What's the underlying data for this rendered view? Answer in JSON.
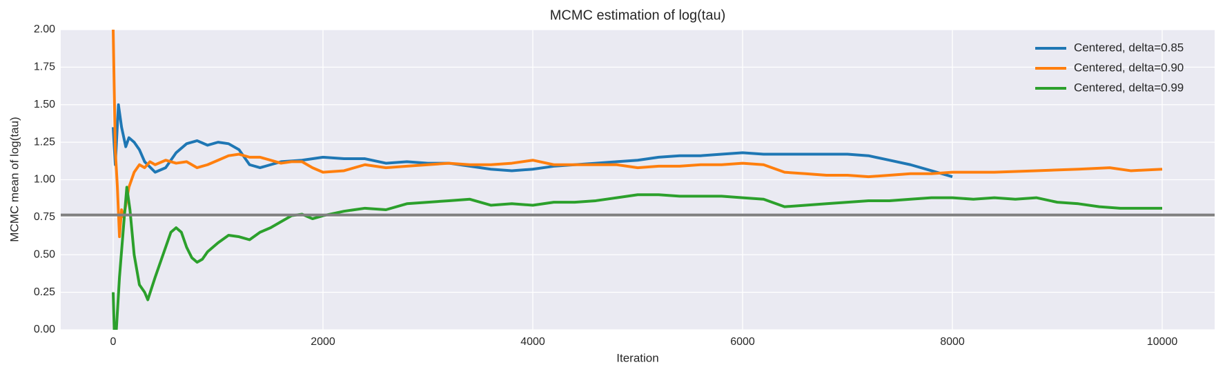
{
  "chart_data": {
    "type": "line",
    "title": "MCMC estimation of log(tau)",
    "x_label": "Iteration",
    "y_label": "MCMC mean of log(tau)",
    "xlim": [
      -500,
      10500
    ],
    "xticks": [
      0,
      2000,
      4000,
      6000,
      8000,
      10000
    ],
    "ylim": [
      0,
      2
    ],
    "yticks": [
      {
        "value": 0,
        "label": "0.00"
      },
      {
        "value": 0.25,
        "label": "0.25"
      },
      {
        "value": 0.5,
        "label": "0.50"
      },
      {
        "value": 0.75,
        "label": "0.75"
      },
      {
        "value": 1,
        "label": "1.00"
      },
      {
        "value": 1.25,
        "label": "1.25"
      },
      {
        "value": 1.5,
        "label": "1.50"
      },
      {
        "value": 1.75,
        "label": "1.75"
      },
      {
        "value": 2,
        "label": "2.00"
      }
    ],
    "grid": true,
    "legend": "upper right",
    "reference_line": {
      "y": 0.765,
      "color": "#808080"
    },
    "series": [
      {
        "name": "Centered, delta=0.85",
        "color": "#1f77b4",
        "x": [
          0,
          20,
          50,
          80,
          120,
          150,
          200,
          250,
          300,
          400,
          500,
          600,
          700,
          800,
          900,
          1000,
          1100,
          1200,
          1300,
          1400,
          1500,
          1600,
          1800,
          2000,
          2200,
          2400,
          2600,
          2800,
          3000,
          3200,
          3400,
          3600,
          3800,
          4000,
          4200,
          4400,
          4600,
          4800,
          5000,
          5200,
          5400,
          5600,
          5800,
          6000,
          6200,
          6400,
          6600,
          6800,
          7000,
          7200,
          7400,
          7600,
          7800,
          8000
        ],
        "values": [
          1.35,
          1.1,
          1.5,
          1.35,
          1.22,
          1.28,
          1.25,
          1.2,
          1.12,
          1.05,
          1.08,
          1.18,
          1.24,
          1.26,
          1.23,
          1.25,
          1.24,
          1.2,
          1.1,
          1.08,
          1.1,
          1.12,
          1.13,
          1.15,
          1.14,
          1.14,
          1.11,
          1.12,
          1.11,
          1.11,
          1.09,
          1.07,
          1.06,
          1.07,
          1.09,
          1.1,
          1.11,
          1.12,
          1.13,
          1.15,
          1.16,
          1.16,
          1.17,
          1.18,
          1.17,
          1.17,
          1.17,
          1.17,
          1.17,
          1.16,
          1.13,
          1.1,
          1.06,
          1.02
        ]
      },
      {
        "name": "Centered, delta=0.90",
        "color": "#ff7f0e",
        "x": [
          0,
          20,
          40,
          60,
          80,
          100,
          150,
          200,
          250,
          300,
          350,
          400,
          500,
          600,
          700,
          800,
          900,
          1000,
          1100,
          1200,
          1300,
          1400,
          1500,
          1600,
          1700,
          1800,
          1900,
          2000,
          2200,
          2400,
          2600,
          2800,
          3000,
          3200,
          3400,
          3600,
          3800,
          4000,
          4200,
          4400,
          4600,
          4800,
          5000,
          5200,
          5400,
          5600,
          5800,
          6000,
          6200,
          6400,
          6600,
          6800,
          7000,
          7200,
          7400,
          7600,
          7800,
          8000,
          8400,
          8800,
          9200,
          9500,
          9700,
          10000
        ],
        "values": [
          2.0,
          1.2,
          0.95,
          0.62,
          0.8,
          0.75,
          0.95,
          1.05,
          1.1,
          1.08,
          1.12,
          1.1,
          1.13,
          1.11,
          1.12,
          1.08,
          1.1,
          1.13,
          1.16,
          1.17,
          1.15,
          1.15,
          1.13,
          1.11,
          1.12,
          1.12,
          1.08,
          1.05,
          1.06,
          1.1,
          1.08,
          1.09,
          1.1,
          1.11,
          1.1,
          1.1,
          1.11,
          1.13,
          1.1,
          1.1,
          1.1,
          1.1,
          1.08,
          1.09,
          1.09,
          1.1,
          1.1,
          1.11,
          1.1,
          1.05,
          1.04,
          1.03,
          1.03,
          1.02,
          1.03,
          1.04,
          1.04,
          1.05,
          1.05,
          1.06,
          1.07,
          1.08,
          1.06,
          1.07
        ]
      },
      {
        "name": "Centered, delta=0.99",
        "color": "#2ca02c",
        "x": [
          0,
          10,
          30,
          60,
          100,
          130,
          160,
          200,
          250,
          300,
          330,
          400,
          450,
          500,
          550,
          600,
          650,
          700,
          750,
          800,
          850,
          900,
          1000,
          1100,
          1200,
          1300,
          1400,
          1500,
          1600,
          1700,
          1800,
          1900,
          2000,
          2200,
          2400,
          2600,
          2800,
          3000,
          3200,
          3400,
          3600,
          3800,
          4000,
          4200,
          4400,
          4600,
          4800,
          5000,
          5200,
          5400,
          5600,
          5800,
          6000,
          6200,
          6400,
          6600,
          6800,
          7000,
          7200,
          7400,
          7600,
          7800,
          8000,
          8200,
          8400,
          8600,
          8800,
          9000,
          9200,
          9400,
          9600,
          9800,
          10000
        ],
        "values": [
          0.25,
          0.0,
          0.0,
          0.35,
          0.7,
          0.95,
          0.8,
          0.5,
          0.3,
          0.25,
          0.2,
          0.35,
          0.45,
          0.55,
          0.65,
          0.68,
          0.65,
          0.55,
          0.48,
          0.45,
          0.47,
          0.52,
          0.58,
          0.63,
          0.62,
          0.6,
          0.65,
          0.68,
          0.72,
          0.76,
          0.77,
          0.74,
          0.76,
          0.79,
          0.81,
          0.8,
          0.84,
          0.85,
          0.86,
          0.87,
          0.83,
          0.84,
          0.83,
          0.85,
          0.85,
          0.86,
          0.88,
          0.9,
          0.9,
          0.89,
          0.89,
          0.89,
          0.88,
          0.87,
          0.82,
          0.83,
          0.84,
          0.85,
          0.86,
          0.86,
          0.87,
          0.88,
          0.88,
          0.87,
          0.88,
          0.87,
          0.88,
          0.85,
          0.84,
          0.82,
          0.81,
          0.81,
          0.81
        ]
      }
    ]
  }
}
